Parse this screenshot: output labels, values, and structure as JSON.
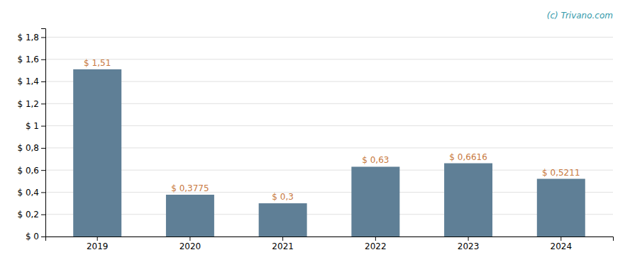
{
  "chart_data": {
    "type": "bar",
    "categories": [
      "2019",
      "2020",
      "2021",
      "2022",
      "2023",
      "2024"
    ],
    "values": [
      1.51,
      0.3775,
      0.3,
      0.63,
      0.6616,
      0.5211
    ],
    "value_labels": [
      "$ 1,51",
      "$ 0,3775",
      "$ 0,3",
      "$ 0,63",
      "$ 0,6616",
      "$ 0,5211"
    ],
    "data_labels": true,
    "color": "#5f7f96",
    "ylim": [
      0,
      1.88
    ],
    "yticks": [
      {
        "value": 0,
        "label": "$ 0"
      },
      {
        "value": 0.2,
        "label": "$ 0,2"
      },
      {
        "value": 0.4,
        "label": "$ 0,4"
      },
      {
        "value": 0.6,
        "label": "$ 0,6"
      },
      {
        "value": 0.8,
        "label": "$ 0,8"
      },
      {
        "value": 1.0,
        "label": "$ 1"
      },
      {
        "value": 1.2,
        "label": "$ 1,2"
      },
      {
        "value": 1.4,
        "label": "$ 1,4"
      },
      {
        "value": 1.6,
        "label": "$ 1,6"
      },
      {
        "value": 1.8,
        "label": "$ 1,8"
      }
    ],
    "grid": true,
    "annotations": [
      "(c) Trivano.com"
    ]
  }
}
